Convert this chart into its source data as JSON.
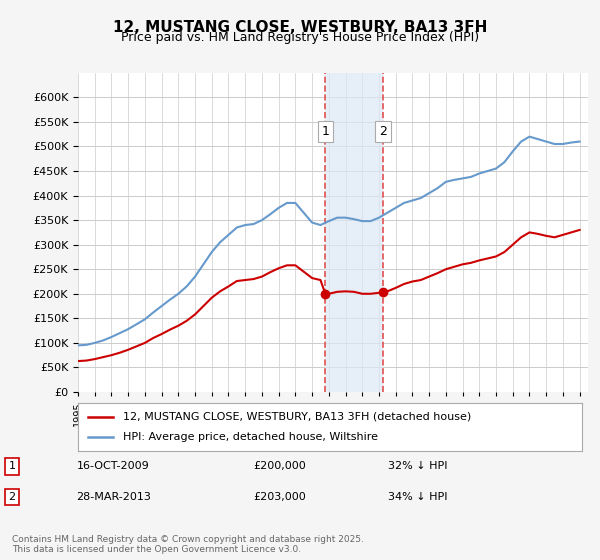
{
  "title1": "12, MUSTANG CLOSE, WESTBURY, BA13 3FH",
  "title2": "Price paid vs. HM Land Registry's House Price Index (HPI)",
  "legend_line1": "12, MUSTANG CLOSE, WESTBURY, BA13 3FH (detached house)",
  "legend_line2": "HPI: Average price, detached house, Wiltshire",
  "footnote": "Contains HM Land Registry data © Crown copyright and database right 2025.\nThis data is licensed under the Open Government Licence v3.0.",
  "transaction1": {
    "label": "1",
    "date": "16-OCT-2009",
    "price": "£200,000",
    "hpi": "32% ↓ HPI"
  },
  "transaction2": {
    "label": "2",
    "date": "28-MAR-2013",
    "price": "£203,000",
    "hpi": "34% ↓ HPI"
  },
  "vline1_year": 2009.79,
  "vline2_year": 2013.24,
  "shade_color": "#dce9f5",
  "vline_color": "#e05050",
  "red_line_color": "#cc0000",
  "blue_line_color": "#6699cc",
  "dot1_color": "#cc0000",
  "dot2_color": "#cc0000",
  "ylim": [
    0,
    650000
  ],
  "xlim_start": 1995,
  "xlim_end": 2025.5,
  "background_color": "#f5f5f5",
  "plot_bg_color": "#ffffff",
  "grid_color": "#cccccc"
}
